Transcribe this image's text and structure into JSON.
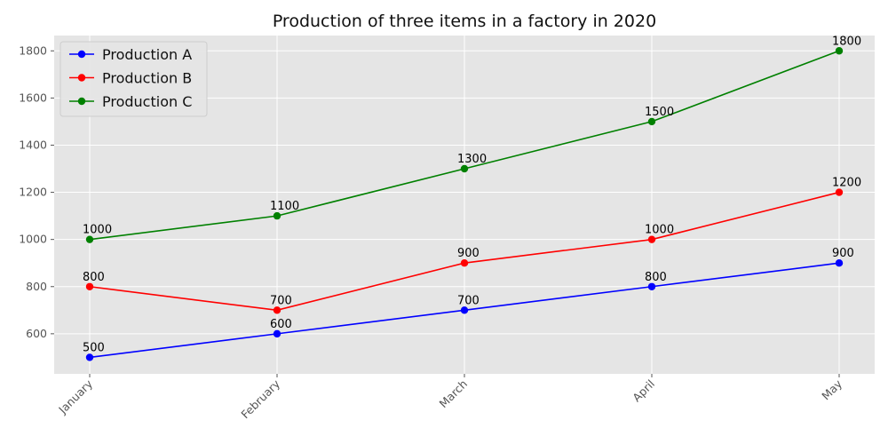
{
  "chart_data": {
    "type": "line",
    "title": "Production of three items in a factory in 2020",
    "xlabel": "",
    "ylabel": "",
    "categories": [
      "January",
      "February",
      "March",
      "April",
      "May"
    ],
    "ylim": [
      430,
      1865
    ],
    "yticks": [
      600,
      800,
      1000,
      1200,
      1400,
      1600,
      1800
    ],
    "grid": true,
    "legend_position": "top-left",
    "series": [
      {
        "name": "Production A",
        "color": "#0000ff",
        "values": [
          500,
          600,
          700,
          800,
          900
        ]
      },
      {
        "name": "Production B",
        "color": "#ff0000",
        "values": [
          800,
          700,
          900,
          1000,
          1200
        ]
      },
      {
        "name": "Production C",
        "color": "#008000",
        "values": [
          1000,
          1100,
          1300,
          1500,
          1800
        ]
      }
    ],
    "colors": {
      "plot_background": "#e5e5e5",
      "grid": "#ffffff"
    }
  }
}
